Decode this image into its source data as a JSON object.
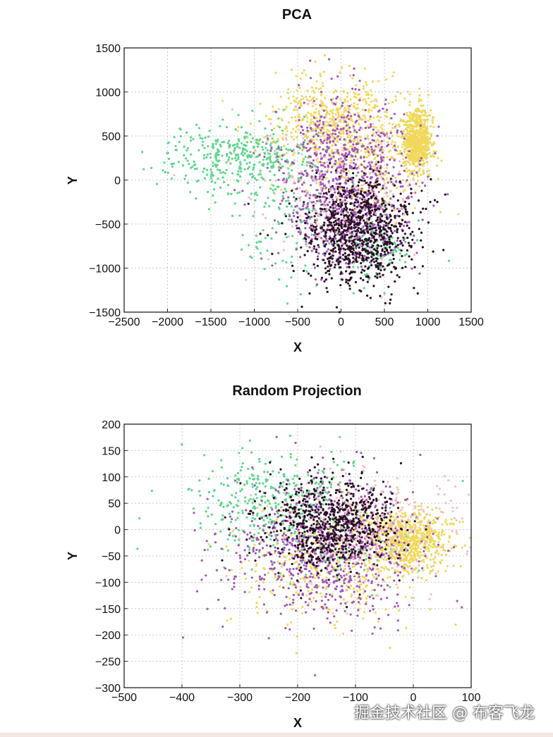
{
  "chart_data": [
    {
      "type": "scatter",
      "title": "PCA",
      "xlabel": "X",
      "ylabel": "Y",
      "xlim": [
        -2500,
        1500
      ],
      "ylim": [
        -1500,
        1500
      ],
      "xticks": [
        -2500,
        -2000,
        -1500,
        -1000,
        -500,
        0,
        500,
        1000,
        1500
      ],
      "yticks": [
        -1500,
        -1000,
        -500,
        0,
        500,
        1000,
        1500
      ],
      "xtick_labels": [
        "−2500",
        "−2000",
        "−1500",
        "−1000",
        "−500",
        "0",
        "500",
        "1000",
        "1500"
      ],
      "ytick_labels": [
        "−1500",
        "−1000",
        "−500",
        "0",
        "500",
        "1000",
        "1500"
      ],
      "grid": true,
      "series": [
        {
          "name": "green",
          "color": "#5cd68a",
          "clusters": [
            {
              "cx": -1200,
              "cy": 250,
              "sx": 420,
              "sy": 180,
              "n": 380
            },
            {
              "cx": 350,
              "cy": -750,
              "sx": 220,
              "sy": 200,
              "n": 160
            },
            {
              "cx": -600,
              "cy": -400,
              "sx": 350,
              "sy": 400,
              "n": 120
            }
          ]
        },
        {
          "name": "yellow",
          "color": "#f0d85a",
          "clusters": [
            {
              "cx": -100,
              "cy": 650,
              "sx": 350,
              "sy": 250,
              "n": 520
            },
            {
              "cx": 880,
              "cy": 450,
              "sx": 80,
              "sy": 180,
              "n": 700
            },
            {
              "cx": 300,
              "cy": 100,
              "sx": 400,
              "sy": 300,
              "n": 200
            }
          ]
        },
        {
          "name": "purple",
          "color": "#a257b8",
          "clusters": [
            {
              "cx": 50,
              "cy": 150,
              "sx": 380,
              "sy": 380,
              "n": 700
            },
            {
              "cx": 100,
              "cy": -550,
              "sx": 300,
              "sy": 260,
              "n": 300
            }
          ]
        },
        {
          "name": "black",
          "color": "#2a0f24",
          "clusters": [
            {
              "cx": 200,
              "cy": -600,
              "sx": 320,
              "sy": 300,
              "n": 900
            }
          ]
        },
        {
          "name": "pink",
          "color": "#f2bfc8",
          "clusters": [
            {
              "cx": -100,
              "cy": 0,
              "sx": 500,
              "sy": 500,
              "n": 200
            }
          ]
        }
      ]
    },
    {
      "type": "scatter",
      "title": "Random Projection",
      "xlabel": "X",
      "ylabel": "Y",
      "xlim": [
        -500,
        100
      ],
      "ylim": [
        -300,
        200
      ],
      "xticks": [
        -500,
        -400,
        -300,
        -200,
        -100,
        0,
        100
      ],
      "yticks": [
        -300,
        -250,
        -200,
        -150,
        -100,
        -50,
        0,
        50,
        100,
        150,
        200
      ],
      "xtick_labels": [
        "−500",
        "−400",
        "−300",
        "−200",
        "−100",
        "0",
        "100"
      ],
      "ytick_labels": [
        "−300",
        "−250",
        "−200",
        "−150",
        "−100",
        "−50",
        "0",
        "50",
        "100",
        "150",
        "200"
      ],
      "grid": true,
      "series": [
        {
          "name": "green",
          "color": "#5cd68a",
          "clusters": [
            {
              "cx": -240,
              "cy": 50,
              "sx": 70,
              "sy": 45,
              "n": 380
            },
            {
              "cx": -120,
              "cy": -30,
              "sx": 60,
              "sy": 40,
              "n": 100
            }
          ]
        },
        {
          "name": "yellow",
          "color": "#f0d85a",
          "clusters": [
            {
              "cx": -10,
              "cy": -20,
              "sx": 35,
              "sy": 30,
              "n": 700
            },
            {
              "cx": -150,
              "cy": -70,
              "sx": 80,
              "sy": 60,
              "n": 350
            }
          ]
        },
        {
          "name": "purple",
          "color": "#a257b8",
          "clusters": [
            {
              "cx": -150,
              "cy": -40,
              "sx": 80,
              "sy": 65,
              "n": 800
            }
          ]
        },
        {
          "name": "black",
          "color": "#2a0f24",
          "clusters": [
            {
              "cx": -140,
              "cy": 10,
              "sx": 55,
              "sy": 45,
              "n": 800
            }
          ]
        },
        {
          "name": "pink",
          "color": "#f2bfc8",
          "clusters": [
            {
              "cx": -60,
              "cy": 0,
              "sx": 80,
              "sy": 60,
              "n": 250
            }
          ]
        }
      ]
    }
  ],
  "watermark": "掘金技术社区 @ 布客飞龙"
}
